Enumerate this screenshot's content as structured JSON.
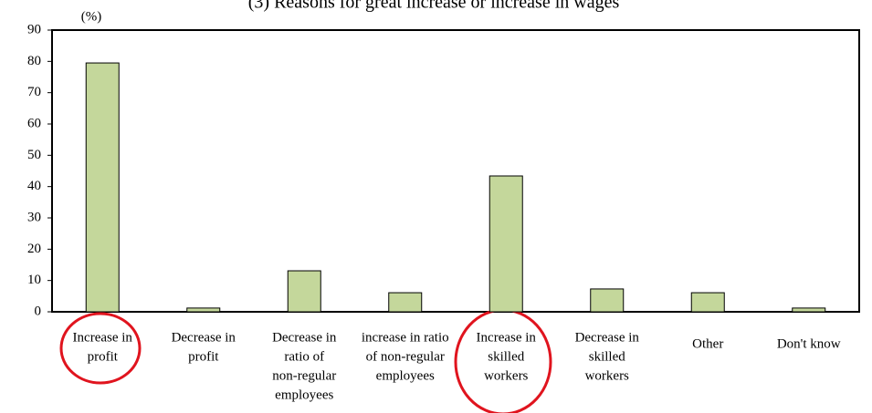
{
  "chart_data": {
    "type": "bar",
    "title": "(3) Reasons for great increase or increase in wages",
    "y_label": "(%)",
    "categories": [
      [
        "Increase in",
        "profit"
      ],
      [
        "Decrease in",
        "profit"
      ],
      [
        "Decrease in",
        "ratio of",
        "non-regular",
        "employees"
      ],
      [
        "increase in ratio",
        "of non-regular",
        "employees"
      ],
      [
        "Increase in",
        "skilled",
        "workers"
      ],
      [
        "Decrease in",
        "skilled",
        "workers"
      ],
      [
        "Other"
      ],
      [
        "Don't know"
      ]
    ],
    "values": [
      79.5,
      1.2,
      13.1,
      6.1,
      43.4,
      7.3,
      6.1,
      1.2
    ],
    "color": "#c4d79b",
    "ylim": [
      0,
      90
    ],
    "yticks": [
      0,
      10,
      20,
      30,
      40,
      50,
      60,
      70,
      80,
      90
    ],
    "grid": false
  }
}
